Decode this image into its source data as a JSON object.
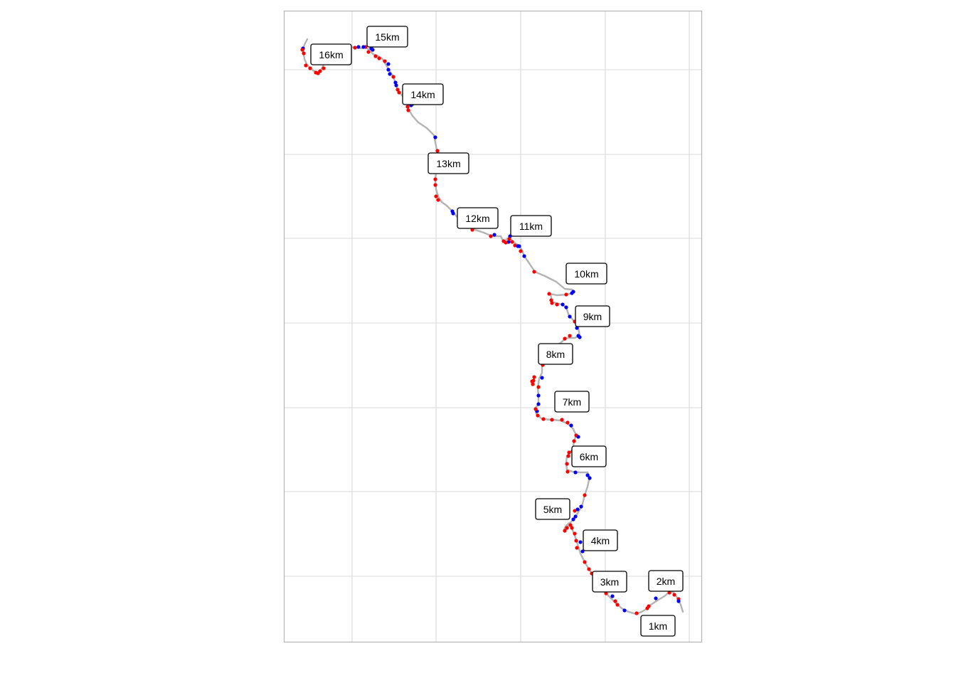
{
  "map": {
    "type": "route-track",
    "grid": true,
    "colors": {
      "track": "#b3b3b3",
      "grid": "#d9d9d9",
      "frame": "#b3b3b3",
      "slower_point": "#ff0000",
      "faster_point": "#0000ff",
      "label_border": "#000000",
      "label_fill": "#ffffff"
    },
    "km_labels": [
      "1km",
      "2km",
      "3km",
      "4km",
      "5km",
      "6km",
      "7km",
      "8km",
      "9km",
      "10km",
      "11km",
      "12km",
      "13km",
      "14km",
      "15km",
      "16km"
    ]
  }
}
